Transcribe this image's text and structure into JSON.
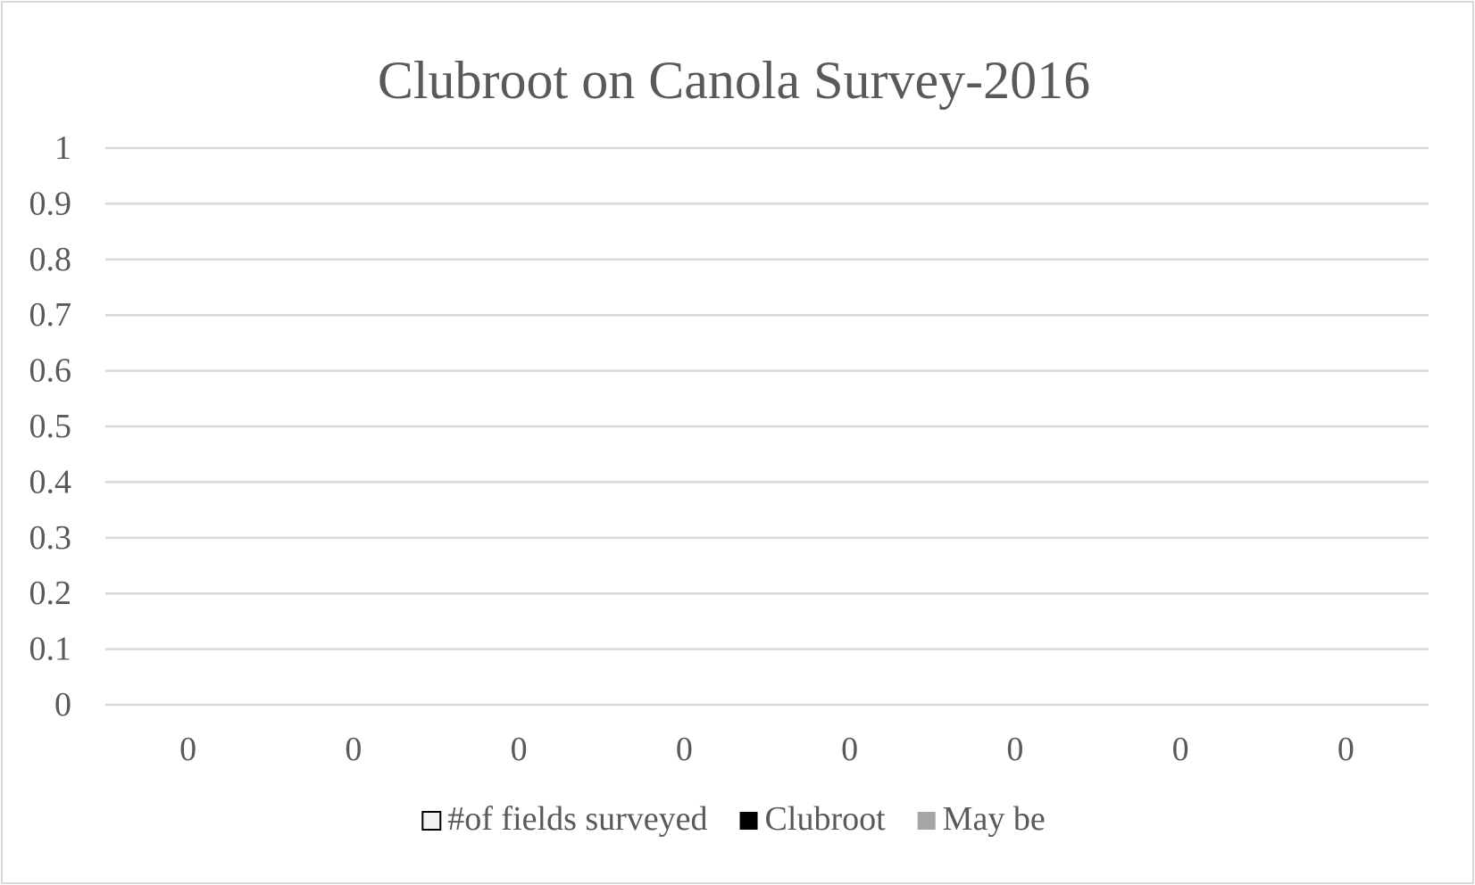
{
  "chart_data": {
    "type": "bar",
    "title": "Clubroot on Canola Survey-2016",
    "xlabel": "",
    "ylabel": "",
    "ylim": [
      0,
      1
    ],
    "yticks": [
      "0",
      "0.1",
      "0.2",
      "0.3",
      "0.4",
      "0.5",
      "0.6",
      "0.7",
      "0.8",
      "0.9",
      "1"
    ],
    "categories": [
      "0",
      "0",
      "0",
      "0",
      "0",
      "0",
      "0",
      "0"
    ],
    "series": [
      {
        "name": "#of fields surveyed",
        "values": [
          0,
          0,
          0,
          0,
          0,
          0,
          0,
          0
        ],
        "color": "#f2f2f2",
        "stroke": "#000000"
      },
      {
        "name": "Clubroot",
        "values": [
          0,
          0,
          0,
          0,
          0,
          0,
          0,
          0
        ],
        "color": "#000000"
      },
      {
        "name": "May be",
        "values": [
          0,
          0,
          0,
          0,
          0,
          0,
          0,
          0
        ],
        "color": "#a6a6a6"
      }
    ],
    "grid": true,
    "legend": "bottom",
    "colors": {
      "text": "#595959",
      "gridline": "#d9d9d9",
      "border": "#d9d9d9"
    }
  }
}
